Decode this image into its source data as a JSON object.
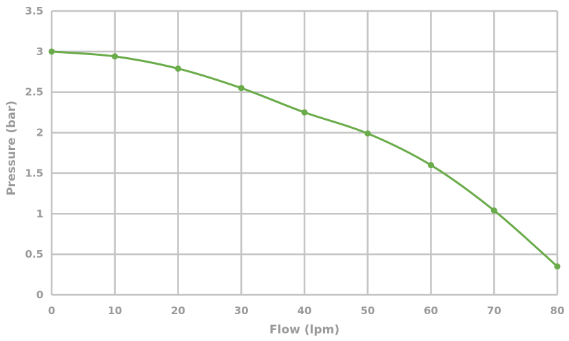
{
  "chart_data": {
    "type": "line",
    "title": "",
    "xlabel": "Flow (lpm)",
    "ylabel": "Pressure (bar)",
    "xlim": [
      0,
      80
    ],
    "ylim": [
      0,
      3.5
    ],
    "x_ticks": [
      "0",
      "10",
      "20",
      "30",
      "40",
      "50",
      "60",
      "70",
      "80"
    ],
    "y_ticks": [
      "0",
      "0.5",
      "1",
      "1.5",
      "2",
      "2.5",
      "3",
      "3.5"
    ],
    "grid": true,
    "legend": "none",
    "series": [
      {
        "x": [
          0,
          10,
          20,
          30,
          40,
          50,
          60,
          70,
          80
        ],
        "y": [
          3.0,
          2.94,
          2.79,
          2.55,
          2.25,
          1.99,
          1.6,
          1.04,
          0.35
        ],
        "color": "#6aab4a"
      }
    ],
    "colors": {
      "grid": "#c4c4c4",
      "text": "#9a9a9a",
      "line": "#6aab4a"
    }
  }
}
